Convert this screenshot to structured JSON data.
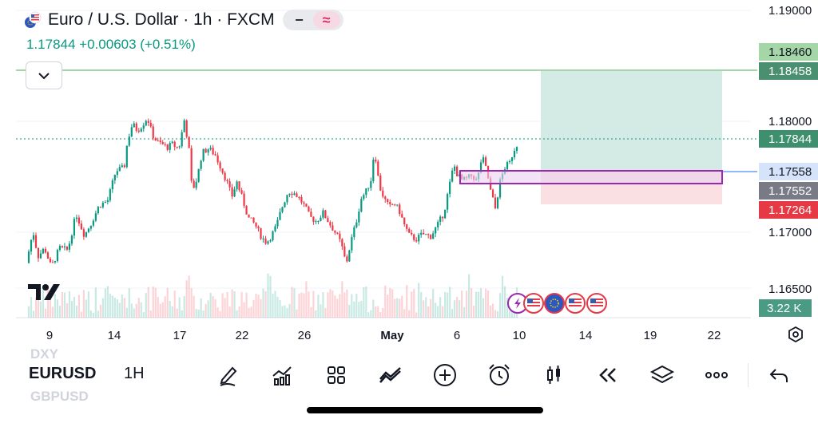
{
  "header": {
    "title": "Euro / U.S. Dollar · 1h · FXCM",
    "dash_icon": "minus-icon",
    "wave_icon": "approx-wave-icon"
  },
  "quote": {
    "text": "1.17844 +0.00603 (+0.51%)",
    "color": "#089981"
  },
  "collapse_icon": "chevron-down-icon",
  "colors": {
    "up": "#089981",
    "down": "#f23645",
    "target_fill": "#d4ebe5",
    "stop_fill": "#fbe0e3",
    "zone_border": "#9c27b0",
    "price_line": "#089981",
    "resistance_line": "#a5d6a7"
  },
  "price_axis": {
    "ticks": [
      "1.19000",
      "1.18000",
      "1.17000",
      "1.16500"
    ],
    "labels": [
      {
        "text": "1.18460",
        "bg": "#a5d6a7",
        "fg": "#131722"
      },
      {
        "text": "1.18458",
        "bg": "#4a8f6f",
        "fg": "#ffffff"
      },
      {
        "text": "1.17844",
        "bg": "#3d8f6e",
        "fg": "#ffffff"
      },
      {
        "text": "1.17558",
        "bg": "#d6e4fb",
        "fg": "#131722"
      },
      {
        "text": "1.17552",
        "bg": "#787b86",
        "fg": "#ffffff"
      },
      {
        "text": "1.17264",
        "bg": "#e53945",
        "fg": "#ffffff"
      }
    ],
    "volume_label": "3.22 K",
    "settings_icon": "gear-icon"
  },
  "time_axis": [
    "9",
    "14",
    "17",
    "22",
    "26",
    "May",
    "6",
    "10",
    "14",
    "19",
    "22"
  ],
  "events": {
    "icons": [
      "lightning-icon",
      "us-flag-icon",
      "eu-flag-icon",
      "us-flag-icon",
      "us-flag-icon"
    ]
  },
  "chart_data": {
    "type": "candlestick",
    "symbol": "EURUSD",
    "interval": "1H",
    "last": 1.17844,
    "ylim": [
      1.1625,
      1.1912
    ],
    "levels": {
      "resistance": 1.18458,
      "entry": 1.17558,
      "entry_low": 1.17552,
      "stop": 1.17264
    },
    "zone": {
      "top": 1.1758,
      "bottom": 1.1744
    },
    "path": [
      [
        0,
        1.1676
      ],
      [
        8,
        1.1706
      ],
      [
        14,
        1.1682
      ],
      [
        22,
        1.169
      ],
      [
        30,
        1.1672
      ],
      [
        40,
        1.169
      ],
      [
        50,
        1.1688
      ],
      [
        60,
        1.1722
      ],
      [
        70,
        1.1702
      ],
      [
        78,
        1.1713
      ],
      [
        88,
        1.173
      ],
      [
        98,
        1.1734
      ],
      [
        108,
        1.1762
      ],
      [
        118,
        1.1765
      ],
      [
        122,
        1.179
      ],
      [
        128,
        1.1806
      ],
      [
        134,
        1.18
      ],
      [
        140,
        1.1805
      ],
      [
        146,
        1.1812
      ],
      [
        152,
        1.1796
      ],
      [
        158,
        1.1789
      ],
      [
        164,
        1.1787
      ],
      [
        170,
        1.1784
      ],
      [
        176,
        1.1787
      ],
      [
        182,
        1.1784
      ],
      [
        186,
        1.1787
      ],
      [
        190,
        1.1812
      ],
      [
        196,
        1.1785
      ],
      [
        200,
        1.1743
      ],
      [
        206,
        1.1755
      ],
      [
        212,
        1.1779
      ],
      [
        220,
        1.1783
      ],
      [
        228,
        1.1777
      ],
      [
        236,
        1.1763
      ],
      [
        242,
        1.1752
      ],
      [
        248,
        1.1738
      ],
      [
        254,
        1.1752
      ],
      [
        262,
        1.1733
      ],
      [
        268,
        1.1718
      ],
      [
        276,
        1.1712
      ],
      [
        284,
        1.17
      ],
      [
        290,
        1.1695
      ],
      [
        296,
        1.1702
      ],
      [
        302,
        1.1711
      ],
      [
        308,
        1.1727
      ],
      [
        316,
        1.1743
      ],
      [
        322,
        1.1742
      ],
      [
        328,
        1.1738
      ],
      [
        336,
        1.1729
      ],
      [
        342,
        1.1719
      ],
      [
        350,
        1.1715
      ],
      [
        358,
        1.1723
      ],
      [
        366,
        1.1713
      ],
      [
        374,
        1.1703
      ],
      [
        380,
        1.1694
      ],
      [
        386,
        1.1675
      ],
      [
        392,
        1.1697
      ],
      [
        398,
        1.1714
      ],
      [
        404,
        1.1736
      ],
      [
        410,
        1.1743
      ],
      [
        416,
        1.1754
      ],
      [
        420,
        1.1783
      ],
      [
        426,
        1.1748
      ],
      [
        432,
        1.1736
      ],
      [
        438,
        1.1728
      ],
      [
        444,
        1.1732
      ],
      [
        450,
        1.1725
      ],
      [
        456,
        1.1712
      ],
      [
        462,
        1.1702
      ],
      [
        470,
        1.1698
      ],
      [
        478,
        1.1703
      ],
      [
        488,
        1.1701
      ],
      [
        496,
        1.1711
      ],
      [
        504,
        1.1723
      ],
      [
        510,
        1.1746
      ],
      [
        516,
        1.1768
      ],
      [
        520,
        1.1759
      ],
      [
        526,
        1.1753
      ],
      [
        532,
        1.1755
      ],
      [
        538,
        1.1758
      ],
      [
        544,
        1.1752
      ],
      [
        550,
        1.1776
      ],
      [
        556,
        1.1761
      ],
      [
        560,
        1.1744
      ],
      [
        566,
        1.1727
      ],
      [
        572,
        1.1753
      ],
      [
        578,
        1.1766
      ],
      [
        584,
        1.177
      ],
      [
        588,
        1.1782
      ],
      [
        592,
        1.1784
      ]
    ]
  },
  "toolbar": {
    "ghost_above": "DXY",
    "ghost_below": "GBPUSD",
    "symbol": "EURUSD",
    "timeframe": "1H",
    "tools": [
      {
        "name": "draw-pen-icon",
        "label": "Drawing"
      },
      {
        "name": "indicators-icon",
        "label": "Indicators"
      },
      {
        "name": "layouts-grid-icon",
        "label": "Layouts"
      },
      {
        "name": "templates-icon",
        "label": "Templates"
      },
      {
        "name": "add-icon",
        "label": "Add"
      },
      {
        "name": "alarm-clock-icon",
        "label": "Alerts"
      },
      {
        "name": "candles-icon",
        "label": "Chart type"
      },
      {
        "name": "replay-icon",
        "label": "Replay"
      },
      {
        "name": "layers-icon",
        "label": "Object tree"
      },
      {
        "name": "more-icon",
        "label": "More"
      },
      {
        "name": "undo-icon",
        "label": "Undo"
      }
    ]
  }
}
